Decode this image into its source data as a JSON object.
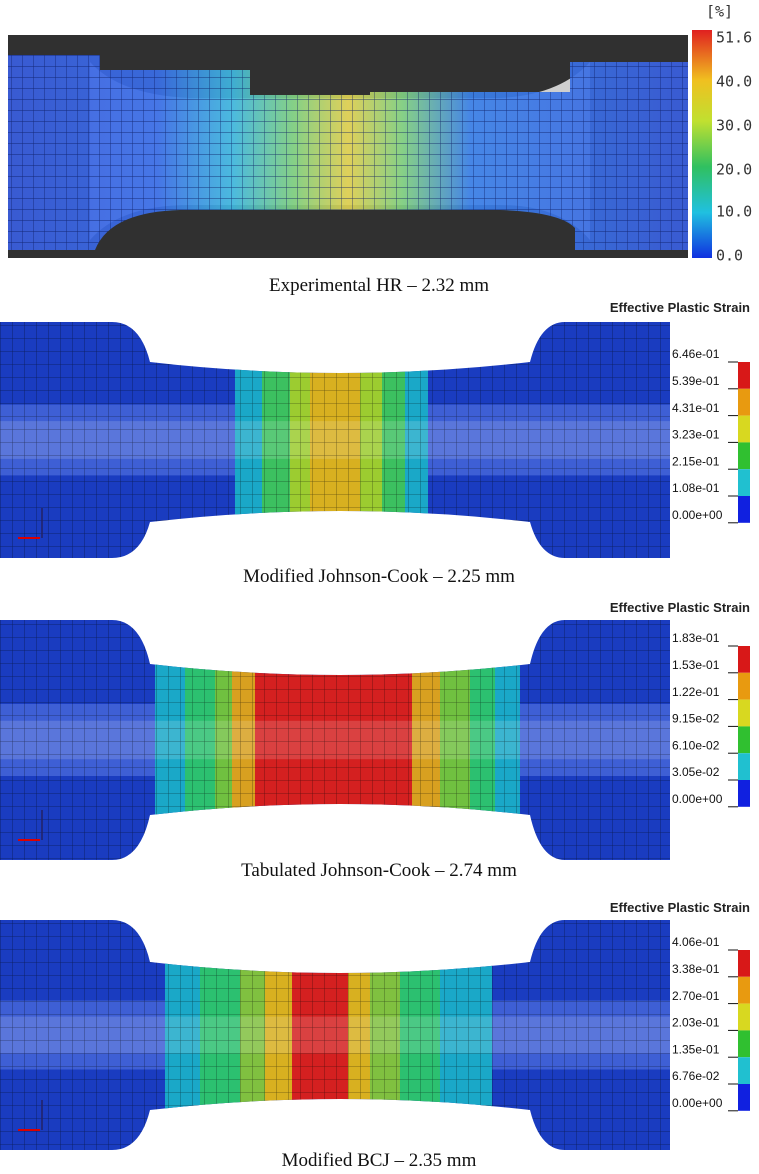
{
  "panels": [
    {
      "caption": "Experimental HR – 2.32 mm",
      "legend": {
        "title": "[%]",
        "labels": [
          "51.6",
          "40.0",
          "30.0",
          "20.0",
          "10.0",
          "0.0"
        ]
      }
    },
    {
      "caption": "Modified Johnson-Cook – 2.25 mm",
      "legend": {
        "title": "Effective Plastic Strain",
        "labels": [
          "6.46e-01",
          "5.39e-01",
          "4.31e-01",
          "3.23e-01",
          "2.15e-01",
          "1.08e-01",
          "0.00e+00"
        ]
      }
    },
    {
      "caption": "Tabulated Johnson-Cook – 2.74 mm",
      "legend": {
        "title": "Effective Plastic Strain",
        "labels": [
          "1.83e-01",
          "1.53e-01",
          "1.22e-01",
          "9.15e-02",
          "6.10e-02",
          "3.05e-02",
          "0.00e+00"
        ]
      }
    },
    {
      "caption": "Modified BCJ – 2.35 mm",
      "legend": {
        "title": "Effective Plastic Strain",
        "labels": [
          "4.06e-01",
          "3.38e-01",
          "2.70e-01",
          "2.03e-01",
          "1.35e-01",
          "6.76e-02",
          "0.00e+00"
        ]
      }
    }
  ]
}
